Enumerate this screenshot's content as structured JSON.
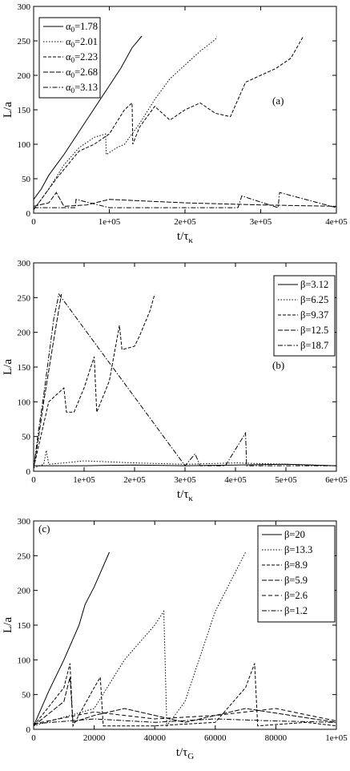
{
  "chart_data": [
    {
      "type": "line",
      "panel_label": "(a)",
      "xlabel": "t/τ",
      "xlabel_sub": "κ",
      "ylabel": "L/a",
      "xlim": [
        0,
        400000
      ],
      "ylim": [
        0,
        300
      ],
      "xticks": [
        0,
        100000,
        200000,
        300000,
        400000
      ],
      "xtick_labels": [
        "0",
        "1e+05",
        "2e+05",
        "3e+05",
        "4e+05"
      ],
      "yticks": [
        0,
        50,
        100,
        150,
        200,
        250,
        300
      ],
      "ytick_labels": [
        "0",
        "50",
        "100",
        "150",
        "200",
        "250",
        "300"
      ],
      "legend_position": "top-left",
      "series": [
        {
          "name": "α0=1.78",
          "label_main": "α",
          "label_sub": "0",
          "label_rest": "=1.78",
          "dash": "",
          "x": [
            0,
            10000,
            20000,
            30000,
            40000,
            55000,
            70000,
            85000,
            100000,
            115000,
            130000,
            143000
          ],
          "y": [
            20,
            35,
            55,
            70,
            85,
            110,
            135,
            160,
            185,
            210,
            240,
            257
          ]
        },
        {
          "name": "α0=2.01",
          "label_main": "α",
          "label_sub": "0",
          "label_rest": "=2.01",
          "dash": "1.5,2",
          "x": [
            0,
            20000,
            40000,
            60000,
            80000,
            95000,
            96000,
            110000,
            120000,
            140000,
            160000,
            180000,
            200000,
            220000,
            240000,
            242000
          ],
          "y": [
            5,
            35,
            70,
            95,
            110,
            115,
            85,
            95,
            100,
            130,
            165,
            195,
            215,
            235,
            252,
            256
          ]
        },
        {
          "name": "α0=2.23",
          "label_main": "α",
          "label_sub": "0",
          "label_rest": "=2.23",
          "dash": "4,2",
          "x": [
            0,
            30000,
            60000,
            80000,
            100000,
            120000,
            130000,
            131000,
            140000,
            160000,
            180000,
            200000,
            220000,
            240000,
            260000,
            280000,
            300000,
            320000,
            340000,
            356000
          ],
          "y": [
            5,
            50,
            90,
            100,
            115,
            150,
            160,
            100,
            125,
            155,
            135,
            150,
            160,
            145,
            140,
            190,
            200,
            210,
            225,
            256
          ]
        },
        {
          "name": "α0=2.68",
          "label_main": "α",
          "label_sub": "0",
          "label_rest": "=2.68",
          "dash": "6,2",
          "x": [
            0,
            20000,
            30000,
            40000,
            70000,
            100000,
            200000,
            300000,
            400000
          ],
          "y": [
            10,
            15,
            30,
            10,
            12,
            20,
            15,
            12,
            10
          ]
        },
        {
          "name": "α0=3.13",
          "label_main": "α",
          "label_sub": "0",
          "label_rest": "=3.13",
          "dash": "6,2,1.5,2",
          "x": [
            0,
            55000,
            56000,
            100000,
            200000,
            270000,
            275000,
            323000,
            325000,
            400000
          ],
          "y": [
            8,
            8,
            20,
            8,
            8,
            8,
            25,
            8,
            30,
            8
          ]
        }
      ]
    },
    {
      "type": "line",
      "panel_label": "(b)",
      "xlabel": "t/τ",
      "xlabel_sub": "κ",
      "ylabel": "L/a",
      "xlim": [
        0,
        600000
      ],
      "ylim": [
        0,
        300
      ],
      "xticks": [
        0,
        100000,
        200000,
        300000,
        400000,
        500000,
        600000
      ],
      "xtick_labels": [
        "0",
        "1e+05",
        "2e+05",
        "3e+05",
        "4e+05",
        "5e+05",
        "6e+05"
      ],
      "yticks": [
        0,
        50,
        100,
        150,
        200,
        250,
        300
      ],
      "ytick_labels": [
        "0",
        "50",
        "100",
        "150",
        "200",
        "250",
        "300"
      ],
      "legend_position": "top-right",
      "series": [
        {
          "name": "β=3.12",
          "label_main": "β=3.12",
          "dash": "",
          "x": [
            0,
            100000,
            200000,
            300000,
            400000,
            500000,
            600000
          ],
          "y": [
            8,
            8,
            9,
            8,
            9,
            10,
            8
          ]
        },
        {
          "name": "β=6.25",
          "label_main": "β=6.25",
          "dash": "1.5,2",
          "x": [
            0,
            20000,
            25000,
            30000,
            60000,
            100000,
            200000,
            300000,
            400000,
            500000,
            600000
          ],
          "y": [
            5,
            10,
            30,
            10,
            12,
            15,
            12,
            10,
            12,
            10,
            8
          ]
        },
        {
          "name": "β=9.37",
          "label_main": "β=9.37",
          "dash": "4,2",
          "x": [
            0,
            30000,
            60000,
            65000,
            80000,
            100000,
            120000,
            125000,
            150000,
            170000,
            175000,
            200000,
            210000,
            230000,
            240000
          ],
          "y": [
            5,
            100,
            120,
            85,
            85,
            120,
            165,
            85,
            130,
            210,
            175,
            180,
            195,
            230,
            255
          ]
        },
        {
          "name": "β=12.5",
          "label_main": "β=12.5",
          "dash": "6,2",
          "x": [
            0,
            10000,
            20000,
            40000,
            55000
          ],
          "y": [
            5,
            50,
            100,
            190,
            255
          ]
        },
        {
          "name": "β=18.7",
          "label_main": "β=18.7",
          "dash": "6,2,1.5,2",
          "x": [
            0,
            10000,
            20000,
            40000,
            50000,
            300000,
            320000,
            330000,
            380000,
            420000,
            422000,
            450000,
            600000
          ],
          "y": [
            5,
            60,
            110,
            220,
            255,
            8,
            25,
            8,
            8,
            55,
            8,
            8,
            8
          ]
        }
      ]
    },
    {
      "type": "line",
      "panel_label": "(c)",
      "xlabel": "t/τ",
      "xlabel_sub": "G",
      "ylabel": "L/a",
      "xlim": [
        0,
        100000
      ],
      "ylim": [
        0,
        300
      ],
      "xticks": [
        0,
        20000,
        40000,
        60000,
        80000,
        100000
      ],
      "xtick_labels": [
        "0",
        "20000",
        "40000",
        "60000",
        "80000",
        "1e+05"
      ],
      "yticks": [
        0,
        50,
        100,
        150,
        200,
        250,
        300
      ],
      "ytick_labels": [
        "0",
        "50",
        "100",
        "150",
        "200",
        "250",
        "300"
      ],
      "legend_position": "top-right",
      "series": [
        {
          "name": "β=20",
          "label_main": "β=20",
          "dash": "",
          "x": [
            0,
            5000,
            10000,
            15000,
            17000,
            20000,
            25000
          ],
          "y": [
            5,
            55,
            100,
            150,
            180,
            205,
            255
          ]
        },
        {
          "name": "β=13.3",
          "label_main": "β=13.3",
          "dash": "1.5,2",
          "x": [
            0,
            20000,
            30000,
            40000,
            43000,
            44000,
            50000,
            60000,
            70000
          ],
          "y": [
            5,
            30,
            100,
            150,
            170,
            5,
            40,
            170,
            255
          ]
        },
        {
          "name": "β=8.9",
          "label_main": "β=8.9",
          "dash": "4,2",
          "x": [
            0,
            10000,
            12000,
            13000,
            20000,
            22000,
            23000,
            40000,
            60000,
            70000,
            73000,
            74000,
            90000,
            100000
          ],
          "y": [
            5,
            60,
            95,
            5,
            60,
            75,
            5,
            5,
            10,
            60,
            95,
            5,
            10,
            5
          ]
        },
        {
          "name": "β=5.9",
          "label_main": "β=5.9",
          "dash": "6,2",
          "x": [
            0,
            10000,
            12000,
            13000,
            20000,
            30000,
            50000,
            70000,
            100000
          ],
          "y": [
            5,
            40,
            75,
            10,
            20,
            30,
            10,
            30,
            10
          ]
        },
        {
          "name": "β=2.6",
          "label_main": "β=2.6",
          "dash": "5,3",
          "x": [
            0,
            20000,
            40000,
            60000,
            80000,
            100000
          ],
          "y": [
            8,
            25,
            15,
            20,
            30,
            12
          ]
        },
        {
          "name": "β=1.2",
          "label_main": "β=1.2",
          "dash": "6,2,1.5,2",
          "x": [
            0,
            20000,
            40000,
            60000,
            80000,
            100000
          ],
          "y": [
            8,
            15,
            10,
            15,
            12,
            10
          ]
        }
      ]
    }
  ]
}
